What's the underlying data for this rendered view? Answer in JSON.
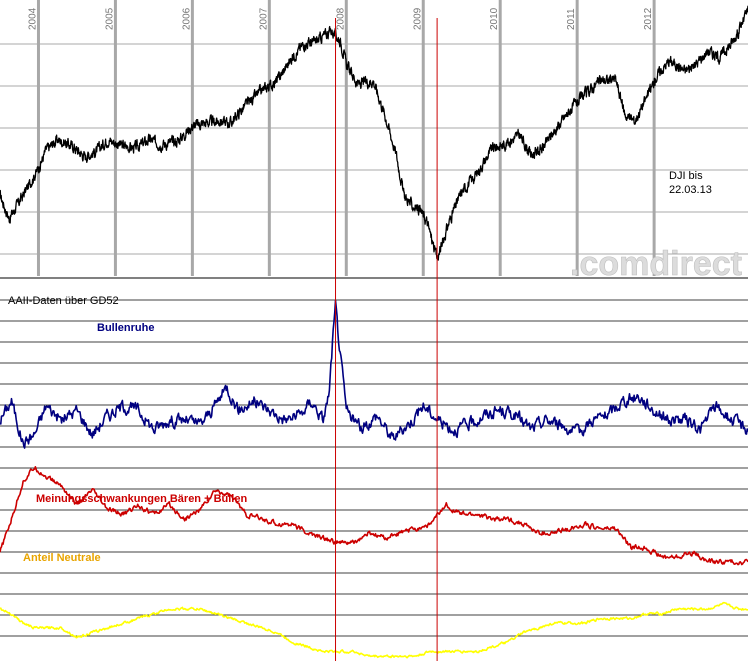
{
  "chart_data": [
    {
      "type": "line",
      "title": "",
      "xlabel": "",
      "ylabel": "",
      "x_ticks": [
        "2004",
        "2005",
        "2006",
        "2007",
        "2008",
        "2009",
        "2010",
        "2011",
        "2012"
      ],
      "x_range": [
        2003.5,
        2013.22
      ],
      "grid": true,
      "annotation": "DJI bis\n22.03.13",
      "watermark": ".comdirect",
      "series": [
        {
          "color": "#000000",
          "x": [
            2003.5,
            2003.62,
            2003.85,
            2004.0,
            2004.1,
            2004.25,
            2004.45,
            2004.6,
            2004.75,
            2004.9,
            2005.05,
            2005.25,
            2005.45,
            2005.6,
            2005.8,
            2006.0,
            2006.15,
            2006.35,
            2006.5,
            2006.7,
            2006.9,
            2007.1,
            2007.3,
            2007.45,
            2007.6,
            2007.8,
            2007.92,
            2008.0,
            2008.15,
            2008.35,
            2008.5,
            2008.65,
            2008.75,
            2008.85,
            2008.95,
            2009.05,
            2009.18,
            2009.35,
            2009.5,
            2009.7,
            2009.9,
            2010.05,
            2010.25,
            2010.4,
            2010.55,
            2010.7,
            2010.9,
            2011.1,
            2011.3,
            2011.5,
            2011.62,
            2011.75,
            2011.9,
            2012.05,
            2012.2,
            2012.4,
            2012.55,
            2012.7,
            2012.85,
            2013.0,
            2013.1,
            2013.22
          ],
          "y": [
            9000,
            8300,
            9200,
            9800,
            10350,
            10650,
            10450,
            10150,
            10300,
            10650,
            10500,
            10400,
            10650,
            10500,
            10600,
            11050,
            11150,
            11200,
            11150,
            11700,
            12100,
            12400,
            13100,
            13500,
            13550,
            13900,
            13600,
            12900,
            12300,
            12400,
            11400,
            10200,
            9000,
            8700,
            8600,
            8200,
            7100,
            8300,
            9100,
            9650,
            10400,
            10500,
            10800,
            10200,
            10400,
            10900,
            11500,
            12000,
            12400,
            12450,
            11400,
            11200,
            11900,
            12600,
            13000,
            12700,
            12900,
            13300,
            13100,
            13500,
            13900,
            14500
          ]
        }
      ]
    },
    {
      "type": "line",
      "title": "AAII-Daten über GD52",
      "xlabel": "",
      "ylabel": "",
      "x_range": [
        2003.5,
        2013.22
      ],
      "grid": true,
      "series": [
        {
          "name": "Bullenruhe",
          "color": "#000080",
          "x": [
            2003.5,
            2003.65,
            2003.8,
            2003.95,
            2004.1,
            2004.3,
            2004.5,
            2004.7,
            2004.9,
            2005.1,
            2005.3,
            2005.5,
            2005.7,
            2005.9,
            2006.1,
            2006.25,
            2006.45,
            2006.6,
            2006.8,
            2007.0,
            2007.2,
            2007.4,
            2007.55,
            2007.7,
            2007.78,
            2007.82,
            2007.86,
            2007.92,
            2008.0,
            2008.2,
            2008.4,
            2008.6,
            2008.8,
            2009.0,
            2009.2,
            2009.4,
            2009.6,
            2009.8,
            2010.0,
            2010.2,
            2010.4,
            2010.6,
            2010.8,
            2011.0,
            2011.2,
            2011.4,
            2011.6,
            2011.8,
            2012.0,
            2012.2,
            2012.4,
            2012.6,
            2012.8,
            2013.0,
            2013.22
          ],
          "y": [
            24,
            28,
            19,
            21,
            27,
            24,
            26,
            21,
            25,
            27,
            26,
            22,
            24,
            24,
            23,
            26,
            31,
            26,
            28,
            26,
            24,
            25,
            28,
            24,
            30,
            40,
            48,
            38,
            26,
            22,
            25,
            20,
            23,
            27,
            24,
            22,
            23,
            25,
            26,
            25,
            22,
            24,
            23,
            21,
            24,
            25,
            28,
            29,
            26,
            24,
            24,
            22,
            27,
            24,
            22
          ]
        },
        {
          "name": "Meinungsschwankungen Bären + Bullen",
          "color": "#cc0000",
          "x": [
            2003.5,
            2003.65,
            2003.8,
            2003.95,
            2004.1,
            2004.3,
            2004.5,
            2004.7,
            2004.9,
            2005.1,
            2005.3,
            2005.5,
            2005.7,
            2005.9,
            2006.1,
            2006.3,
            2006.5,
            2006.7,
            2006.9,
            2007.1,
            2007.3,
            2007.5,
            2007.7,
            2007.9,
            2008.1,
            2008.3,
            2008.5,
            2008.7,
            2008.9,
            2009.1,
            2009.3,
            2009.5,
            2009.7,
            2009.9,
            2010.1,
            2010.3,
            2010.5,
            2010.7,
            2010.9,
            2011.1,
            2011.3,
            2011.5,
            2011.7,
            2011.9,
            2012.1,
            2012.3,
            2012.5,
            2012.7,
            2012.9,
            2013.1,
            2013.22
          ],
          "y": [
            -4,
            3,
            11,
            14,
            12,
            10,
            6,
            9,
            5,
            4,
            6,
            4,
            6,
            3,
            5,
            9,
            8,
            4,
            3,
            2,
            2,
            0,
            -1,
            -2,
            -2,
            0,
            -1,
            0,
            1,
            2,
            6,
            4,
            4,
            3,
            3,
            2,
            0,
            0,
            1,
            2,
            1,
            1,
            -3,
            -3,
            -5,
            -5,
            -4,
            -6,
            -6,
            -6,
            -6
          ]
        },
        {
          "name": "Anteil Neutrale",
          "color": "#ffff00",
          "x": [
            2003.5,
            2003.65,
            2003.8,
            2003.95,
            2004.1,
            2004.3,
            2004.5,
            2004.7,
            2004.9,
            2005.1,
            2005.3,
            2005.5,
            2005.7,
            2005.9,
            2006.1,
            2006.3,
            2006.5,
            2006.7,
            2006.9,
            2007.1,
            2007.3,
            2007.5,
            2007.7,
            2007.9,
            2008.1,
            2008.3,
            2008.5,
            2008.7,
            2008.9,
            2009.1,
            2009.3,
            2009.5,
            2009.7,
            2009.9,
            2010.1,
            2010.3,
            2010.5,
            2010.7,
            2010.9,
            2011.1,
            2011.3,
            2011.5,
            2011.7,
            2011.9,
            2012.1,
            2012.3,
            2012.5,
            2012.7,
            2012.9,
            2013.1,
            2013.22
          ],
          "y": [
            -16,
            -17,
            -19,
            -20,
            -20,
            -20,
            -22,
            -21,
            -20,
            -19,
            -18,
            -17,
            -16,
            -16,
            -16,
            -17,
            -18,
            -19,
            -20,
            -21,
            -23,
            -24,
            -25,
            -25,
            -25,
            -26,
            -26,
            -26,
            -26,
            -25,
            -25,
            -25,
            -25,
            -24,
            -23,
            -21,
            -20,
            -19,
            -19,
            -19,
            -18,
            -18,
            -18,
            -17,
            -17,
            -16,
            -16,
            -16,
            -15,
            -16,
            -16
          ]
        }
      ]
    }
  ],
  "event_markers": [
    {
      "x": 2007.86,
      "color": "#cc0000"
    },
    {
      "x": 2009.18,
      "color": "#cc0000"
    }
  ]
}
